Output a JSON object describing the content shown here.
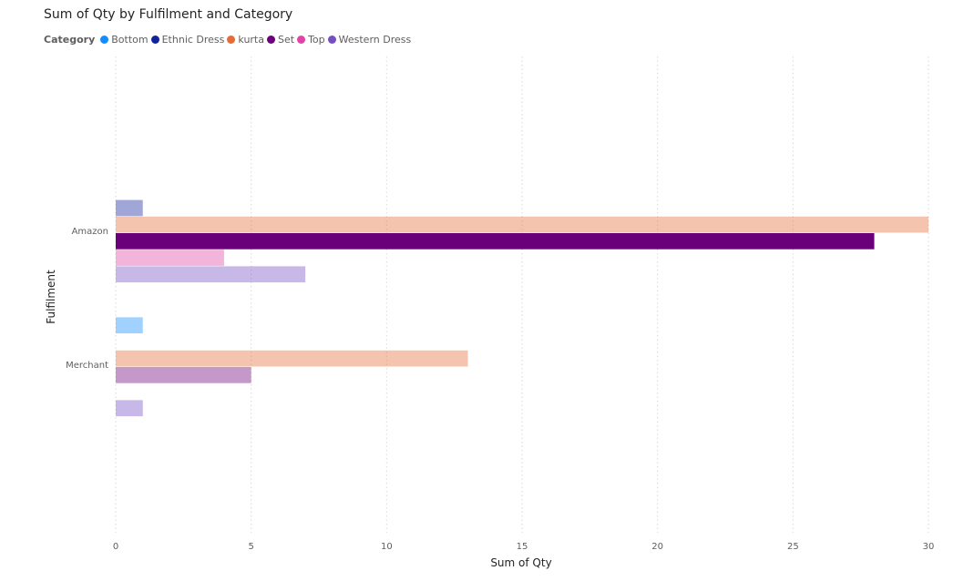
{
  "chart_data": {
    "type": "bar",
    "orientation": "horizontal",
    "title": "Sum of Qty by Fulfilment and Category",
    "xlabel": "Sum of Qty",
    "ylabel": "Fulfilment",
    "legend_title": "Category",
    "legend_position": "top-left",
    "xlim": [
      0,
      30
    ],
    "x_ticks": [
      "0",
      "5",
      "10",
      "15",
      "20",
      "25",
      "30"
    ],
    "grid": true,
    "categories": [
      "Amazon",
      "Merchant"
    ],
    "series": [
      {
        "name": "Bottom",
        "color": "#118DFF",
        "values": [
          null,
          1
        ]
      },
      {
        "name": "Ethnic Dress",
        "color": "#12239E",
        "values": [
          1,
          null
        ]
      },
      {
        "name": "kurta",
        "color": "#E66C37",
        "values": [
          30,
          13
        ]
      },
      {
        "name": "Set",
        "color": "#6B007B",
        "values": [
          28,
          5
        ]
      },
      {
        "name": "Top",
        "color": "#E044A7",
        "values": [
          4,
          null
        ]
      },
      {
        "name": "Western Dress",
        "color": "#744EC2",
        "values": [
          7,
          1
        ]
      }
    ],
    "highlighted_series": "Set",
    "highlighted_category": "Amazon"
  }
}
